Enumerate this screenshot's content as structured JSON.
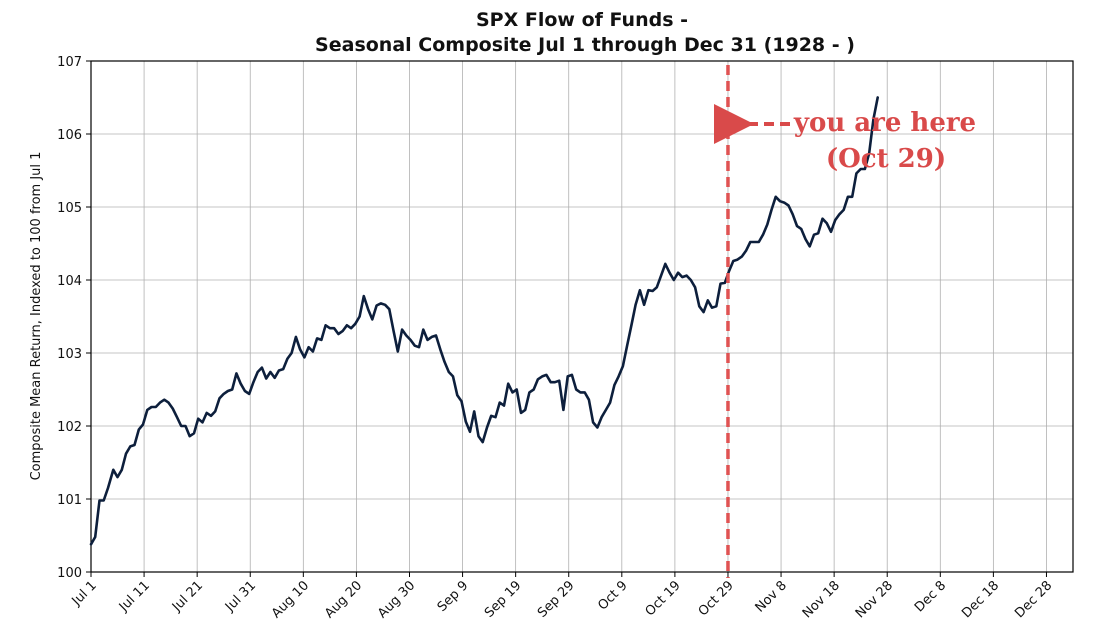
{
  "chart_data": {
    "type": "line",
    "title": "SPX Flow of Funds -",
    "subtitle": "Seasonal Composite Jul 1 through Dec 31 (1928 - )",
    "xlabel": "",
    "ylabel": "Composite Mean Return, Indexed to 100 from Jul 1",
    "ylim": [
      100,
      107
    ],
    "xlim": [
      0,
      185
    ],
    "grid": true,
    "yticks": [
      100,
      101,
      102,
      103,
      104,
      105,
      106,
      107
    ],
    "xticks": [
      {
        "x": 0,
        "label": "Jul 1"
      },
      {
        "x": 10,
        "label": "Jul 11"
      },
      {
        "x": 20,
        "label": "Jul 21"
      },
      {
        "x": 30,
        "label": "Jul 31"
      },
      {
        "x": 40,
        "label": "Aug 10"
      },
      {
        "x": 50,
        "label": "Aug 20"
      },
      {
        "x": 60,
        "label": "Aug 30"
      },
      {
        "x": 70,
        "label": "Sep 9"
      },
      {
        "x": 80,
        "label": "Sep 19"
      },
      {
        "x": 90,
        "label": "Sep 29"
      },
      {
        "x": 100,
        "label": "Oct 9"
      },
      {
        "x": 110,
        "label": "Oct 19"
      },
      {
        "x": 120,
        "label": "Oct 29"
      },
      {
        "x": 130,
        "label": "Nov 8"
      },
      {
        "x": 140,
        "label": "Nov 18"
      },
      {
        "x": 150,
        "label": "Nov 28"
      },
      {
        "x": 160,
        "label": "Dec 8"
      },
      {
        "x": 170,
        "label": "Dec 18"
      },
      {
        "x": 180,
        "label": "Dec 28"
      }
    ],
    "series": [
      {
        "name": "Seasonal Composite",
        "color": "#0d1f3c",
        "points": [
          [
            0,
            100.38
          ],
          [
            0.8,
            100.48
          ],
          [
            1.6,
            100.98
          ],
          [
            2.4,
            100.98
          ],
          [
            3.2,
            101.15
          ],
          [
            4.2,
            101.4
          ],
          [
            5,
            101.3
          ],
          [
            5.8,
            101.4
          ],
          [
            6.6,
            101.62
          ],
          [
            7.4,
            101.72
          ],
          [
            8.2,
            101.74
          ],
          [
            9,
            101.95
          ],
          [
            9.8,
            102.02
          ],
          [
            10.6,
            102.22
          ],
          [
            11.4,
            102.26
          ],
          [
            12.2,
            102.26
          ],
          [
            13,
            102.32
          ],
          [
            13.8,
            102.36
          ],
          [
            14.6,
            102.32
          ],
          [
            15.4,
            102.24
          ],
          [
            16.2,
            102.12
          ],
          [
            17,
            102
          ],
          [
            17.8,
            102
          ],
          [
            18.6,
            101.86
          ],
          [
            19.4,
            101.9
          ],
          [
            20.2,
            102.1
          ],
          [
            21,
            102.05
          ],
          [
            21.8,
            102.18
          ],
          [
            22.6,
            102.14
          ],
          [
            23.4,
            102.2
          ],
          [
            24.2,
            102.38
          ],
          [
            25,
            102.44
          ],
          [
            25.8,
            102.48
          ],
          [
            26.6,
            102.5
          ],
          [
            27.4,
            102.72
          ],
          [
            28.2,
            102.58
          ],
          [
            29,
            102.48
          ],
          [
            29.8,
            102.44
          ],
          [
            30.6,
            102.6
          ],
          [
            31.4,
            102.74
          ],
          [
            32.2,
            102.8
          ],
          [
            33,
            102.65
          ],
          [
            33.8,
            102.74
          ],
          [
            34.6,
            102.66
          ],
          [
            35.4,
            102.76
          ],
          [
            36.2,
            102.78
          ],
          [
            37,
            102.92
          ],
          [
            37.8,
            103
          ],
          [
            38.6,
            103.22
          ],
          [
            39.4,
            103.05
          ],
          [
            40.2,
            102.94
          ],
          [
            41,
            103.08
          ],
          [
            41.8,
            103.02
          ],
          [
            42.6,
            103.2
          ],
          [
            43.4,
            103.18
          ],
          [
            44.2,
            103.38
          ],
          [
            45,
            103.34
          ],
          [
            45.8,
            103.34
          ],
          [
            46.6,
            103.26
          ],
          [
            47.4,
            103.3
          ],
          [
            48.2,
            103.38
          ],
          [
            49,
            103.34
          ],
          [
            49.8,
            103.4
          ],
          [
            50.6,
            103.5
          ],
          [
            51.4,
            103.78
          ],
          [
            52.2,
            103.6
          ],
          [
            53,
            103.46
          ],
          [
            53.8,
            103.65
          ],
          [
            54.6,
            103.68
          ],
          [
            55.4,
            103.66
          ],
          [
            56.2,
            103.6
          ],
          [
            57,
            103.3
          ],
          [
            57.8,
            103.02
          ],
          [
            58.6,
            103.32
          ],
          [
            59.4,
            103.24
          ],
          [
            60.2,
            103.18
          ],
          [
            61,
            103.1
          ],
          [
            61.8,
            103.08
          ],
          [
            62.6,
            103.32
          ],
          [
            63.4,
            103.18
          ],
          [
            64.2,
            103.22
          ],
          [
            65,
            103.24
          ],
          [
            65.8,
            103.05
          ],
          [
            66.6,
            102.88
          ],
          [
            67.4,
            102.74
          ],
          [
            68.2,
            102.68
          ],
          [
            69,
            102.42
          ],
          [
            69.8,
            102.34
          ],
          [
            70.6,
            102.06
          ],
          [
            71.4,
            101.92
          ],
          [
            72.2,
            102.2
          ],
          [
            73,
            101.86
          ],
          [
            73.8,
            101.78
          ],
          [
            74.6,
            101.98
          ],
          [
            75.4,
            102.14
          ],
          [
            76.2,
            102.12
          ],
          [
            77,
            102.32
          ],
          [
            77.8,
            102.28
          ],
          [
            78.6,
            102.58
          ],
          [
            79.4,
            102.46
          ],
          [
            80.2,
            102.5
          ],
          [
            81,
            102.18
          ],
          [
            81.8,
            102.22
          ],
          [
            82.6,
            102.46
          ],
          [
            83.4,
            102.5
          ],
          [
            84.2,
            102.64
          ],
          [
            85,
            102.68
          ],
          [
            85.8,
            102.7
          ],
          [
            86.6,
            102.6
          ],
          [
            87.4,
            102.6
          ],
          [
            88.2,
            102.62
          ],
          [
            89,
            102.22
          ],
          [
            89.8,
            102.68
          ],
          [
            90.6,
            102.7
          ],
          [
            91.4,
            102.5
          ],
          [
            92.2,
            102.46
          ],
          [
            93,
            102.46
          ],
          [
            93.8,
            102.36
          ],
          [
            94.6,
            102.05
          ],
          [
            95.4,
            101.98
          ],
          [
            96.2,
            102.12
          ],
          [
            97,
            102.22
          ],
          [
            97.8,
            102.32
          ],
          [
            98.6,
            102.56
          ],
          [
            99.4,
            102.68
          ],
          [
            100.2,
            102.82
          ],
          [
            101,
            103.1
          ],
          [
            101.8,
            103.38
          ],
          [
            102.6,
            103.66
          ],
          [
            103.4,
            103.86
          ],
          [
            104.2,
            103.66
          ],
          [
            105,
            103.86
          ],
          [
            105.8,
            103.85
          ],
          [
            106.6,
            103.9
          ],
          [
            107.4,
            104.06
          ],
          [
            108.2,
            104.22
          ],
          [
            109,
            104.1
          ],
          [
            109.8,
            104.0
          ],
          [
            110.6,
            104.1
          ],
          [
            111.4,
            104.04
          ],
          [
            112.2,
            104.06
          ],
          [
            113,
            104.0
          ],
          [
            113.8,
            103.9
          ],
          [
            114.6,
            103.64
          ],
          [
            115.4,
            103.56
          ],
          [
            116.2,
            103.72
          ],
          [
            117,
            103.62
          ],
          [
            117.8,
            103.64
          ],
          [
            118.6,
            103.95
          ],
          [
            119.4,
            103.96
          ],
          [
            120.2,
            104.12
          ],
          [
            121,
            104.26
          ],
          [
            121.8,
            104.28
          ],
          [
            122.6,
            104.32
          ],
          [
            123.4,
            104.4
          ],
          [
            124.2,
            104.52
          ],
          [
            125,
            104.52
          ],
          [
            125.8,
            104.52
          ],
          [
            126.6,
            104.62
          ],
          [
            127.4,
            104.76
          ],
          [
            128.2,
            104.96
          ],
          [
            129,
            105.14
          ],
          [
            129.8,
            105.08
          ],
          [
            130.6,
            105.06
          ],
          [
            131.4,
            105.02
          ],
          [
            132.2,
            104.9
          ],
          [
            133,
            104.74
          ],
          [
            133.8,
            104.7
          ],
          [
            134.6,
            104.56
          ],
          [
            135.4,
            104.46
          ],
          [
            136.2,
            104.62
          ],
          [
            137,
            104.64
          ],
          [
            137.8,
            104.84
          ],
          [
            138.6,
            104.78
          ],
          [
            139.4,
            104.66
          ],
          [
            140.2,
            104.82
          ],
          [
            141,
            104.9
          ],
          [
            141.8,
            104.96
          ],
          [
            142.6,
            105.14
          ],
          [
            143.4,
            105.14
          ],
          [
            144.2,
            105.46
          ],
          [
            145,
            105.52
          ],
          [
            145.8,
            105.52
          ],
          [
            146.6,
            105.74
          ],
          [
            147.4,
            106.2
          ],
          [
            148.2,
            106.5
          ]
        ]
      }
    ],
    "marker": {
      "x": 120,
      "label": "Oct 29",
      "color": "#e05252"
    },
    "annotations": [
      {
        "text_line1": "you are here",
        "text_line2": "(Oct 29)",
        "color": "#d94a4a"
      }
    ]
  }
}
